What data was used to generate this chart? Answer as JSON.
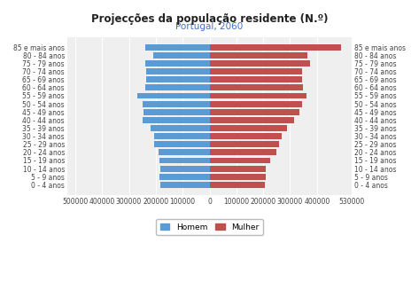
{
  "title": "Projecções da população residente (N.º)",
  "subtitle": "Portugal, 2060",
  "title_color": "#222222",
  "subtitle_color": "#4472c4",
  "age_groups": [
    "0 - 4 anos",
    "5 - 9 anos",
    "10 - 14 anos",
    "15 - 19 anos",
    "20 - 24 anos",
    "25 - 29 anos",
    "30 - 34 anos",
    "35 - 39 anos",
    "40 - 44 anos",
    "45 - 49 anos",
    "50 - 54 anos",
    "55 - 59 anos",
    "60 - 64 anos",
    "65 - 69 anos",
    "70 - 74 anos",
    "75 - 79 anos",
    "80 - 84 anos",
    "85 e mais anos"
  ],
  "male": [
    183000,
    185000,
    183000,
    185000,
    190000,
    205000,
    205000,
    220000,
    250000,
    245000,
    250000,
    270000,
    240000,
    235000,
    235000,
    240000,
    210000,
    240000
  ],
  "female": [
    207000,
    208000,
    210000,
    225000,
    248000,
    258000,
    270000,
    290000,
    315000,
    335000,
    345000,
    360000,
    348000,
    345000,
    345000,
    375000,
    365000,
    490000
  ],
  "male_color": "#5b9bd5",
  "female_color": "#c0504d",
  "xlim": 530000,
  "xtick_vals": [
    -500000,
    -400000,
    -300000,
    -200000,
    -100000,
    0,
    100000,
    200000,
    300000,
    400000,
    530000
  ],
  "xticklabels": [
    "500000",
    "400000",
    "300000",
    "200000",
    "100000",
    "0",
    "100000",
    "200000",
    "300000",
    "400000",
    "530000"
  ],
  "background_color": "#ffffff",
  "plot_bg_color": "#efefef",
  "grid_color": "#ffffff",
  "bar_height": 0.75,
  "legend_male": "Homem",
  "legend_female": "Mulher",
  "tick_fontsize": 5.5,
  "label_fontsize": 5.5,
  "title_fontsize": 8.5,
  "subtitle_fontsize": 7.5
}
